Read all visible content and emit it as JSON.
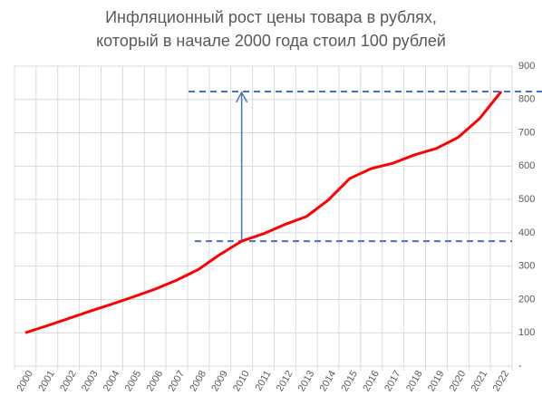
{
  "chart_data": {
    "type": "line",
    "title": [
      "Инфляционный рост цены товара в рублях,",
      "который в начале 2000 года стоил 100 рублей"
    ],
    "categories": [
      "2000",
      "2001",
      "2002",
      "2003",
      "2004",
      "2005",
      "2006",
      "2007",
      "2008",
      "2009",
      "2010",
      "2011",
      "2012",
      "2013",
      "2014",
      "2015",
      "2016",
      "2017",
      "2018",
      "2019",
      "2020",
      "2021",
      "2022"
    ],
    "values": [
      100,
      121,
      143,
      165,
      186,
      208,
      231,
      258,
      290,
      335,
      375,
      397,
      425,
      449,
      498,
      563,
      593,
      609,
      634,
      653,
      686,
      743,
      824
    ],
    "color": "#ff0000",
    "ylim": [
      0,
      900
    ],
    "yticks": [
      {
        "value": 0,
        "label": "-"
      },
      100,
      200,
      300,
      400,
      500,
      600,
      700,
      800,
      900
    ],
    "grid": true,
    "reference_lines": [
      375,
      824
    ],
    "reference_color": "#4472c4"
  }
}
